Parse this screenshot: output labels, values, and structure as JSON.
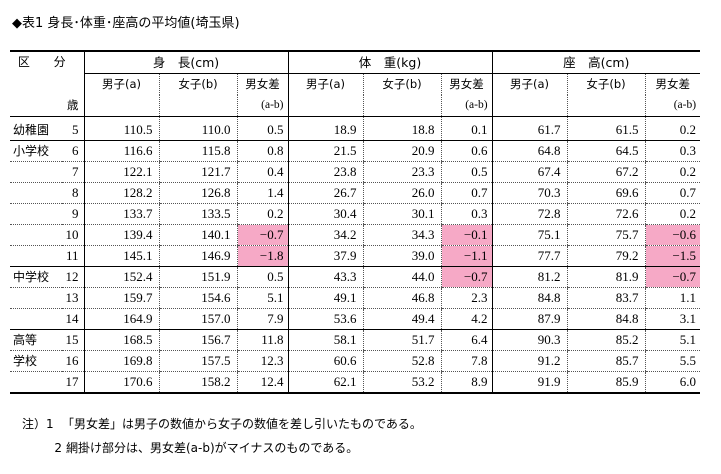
{
  "title": "◆表1 身長･体重･座高の平均値(埼玉県)",
  "header": {
    "kubun": "区 分",
    "sai": "歳",
    "groups": [
      "身　長(cm)",
      "体　重(kg)",
      "座　高(cm)"
    ],
    "sub": [
      "男子(a)",
      "女子(b)",
      "男女差"
    ],
    "formula": "(a-b)"
  },
  "rows": [
    {
      "school": "幼稚園",
      "age": "5",
      "h": [
        "110.5",
        "110.0",
        "0.5"
      ],
      "w": [
        "18.9",
        "18.8",
        "0.1"
      ],
      "s": [
        "61.7",
        "61.5",
        "0.2"
      ]
    },
    {
      "school": "小学校",
      "age": "6",
      "h": [
        "116.6",
        "115.8",
        "0.8"
      ],
      "w": [
        "21.5",
        "20.9",
        "0.6"
      ],
      "s": [
        "64.8",
        "64.5",
        "0.3"
      ]
    },
    {
      "school": "",
      "age": "7",
      "h": [
        "122.1",
        "121.7",
        "0.4"
      ],
      "w": [
        "23.8",
        "23.3",
        "0.5"
      ],
      "s": [
        "67.4",
        "67.2",
        "0.2"
      ]
    },
    {
      "school": "",
      "age": "8",
      "h": [
        "128.2",
        "126.8",
        "1.4"
      ],
      "w": [
        "26.7",
        "26.0",
        "0.7"
      ],
      "s": [
        "70.3",
        "69.6",
        "0.7"
      ]
    },
    {
      "school": "",
      "age": "9",
      "h": [
        "133.7",
        "133.5",
        "0.2"
      ],
      "w": [
        "30.4",
        "30.1",
        "0.3"
      ],
      "s": [
        "72.8",
        "72.6",
        "0.2"
      ]
    },
    {
      "school": "",
      "age": "10",
      "h": [
        "139.4",
        "140.1",
        "−0.7"
      ],
      "w": [
        "34.2",
        "34.3",
        "−0.1"
      ],
      "s": [
        "75.1",
        "75.7",
        "−0.6"
      ]
    },
    {
      "school": "",
      "age": "11",
      "h": [
        "145.1",
        "146.9",
        "−1.8"
      ],
      "w": [
        "37.9",
        "39.0",
        "−1.1"
      ],
      "s": [
        "77.7",
        "79.2",
        "−1.5"
      ]
    },
    {
      "school": "中学校",
      "age": "12",
      "h": [
        "152.4",
        "151.9",
        "0.5"
      ],
      "w": [
        "43.3",
        "44.0",
        "−0.7"
      ],
      "s": [
        "81.2",
        "81.9",
        "−0.7"
      ]
    },
    {
      "school": "",
      "age": "13",
      "h": [
        "159.7",
        "154.6",
        "5.1"
      ],
      "w": [
        "49.1",
        "46.8",
        "2.3"
      ],
      "s": [
        "84.8",
        "83.7",
        "1.1"
      ]
    },
    {
      "school": "",
      "age": "14",
      "h": [
        "164.9",
        "157.0",
        "7.9"
      ],
      "w": [
        "53.6",
        "49.4",
        "4.2"
      ],
      "s": [
        "87.9",
        "84.8",
        "3.1"
      ]
    },
    {
      "school": "高等",
      "age": "15",
      "h": [
        "168.5",
        "156.7",
        "11.8"
      ],
      "w": [
        "58.1",
        "51.7",
        "6.4"
      ],
      "s": [
        "90.3",
        "85.2",
        "5.1"
      ]
    },
    {
      "school": "学校",
      "age": "16",
      "h": [
        "169.8",
        "157.5",
        "12.3"
      ],
      "w": [
        "60.6",
        "52.8",
        "7.8"
      ],
      "s": [
        "91.2",
        "85.7",
        "5.5"
      ]
    },
    {
      "school": "",
      "age": "17",
      "h": [
        "170.6",
        "158.2",
        "12.4"
      ],
      "w": [
        "62.1",
        "53.2",
        "8.9"
      ],
      "s": [
        "91.9",
        "85.9",
        "6.0"
      ]
    }
  ],
  "notes": [
    {
      "num": "注）1",
      "text": "「男女差」は男子の数値から女子の数値を差し引いたものである。"
    },
    {
      "num": "2",
      "text": "網掛け部分は、男女差(a-b)がマイナスのものである。"
    }
  ],
  "colors": {
    "highlight": "#f6a9c6"
  }
}
